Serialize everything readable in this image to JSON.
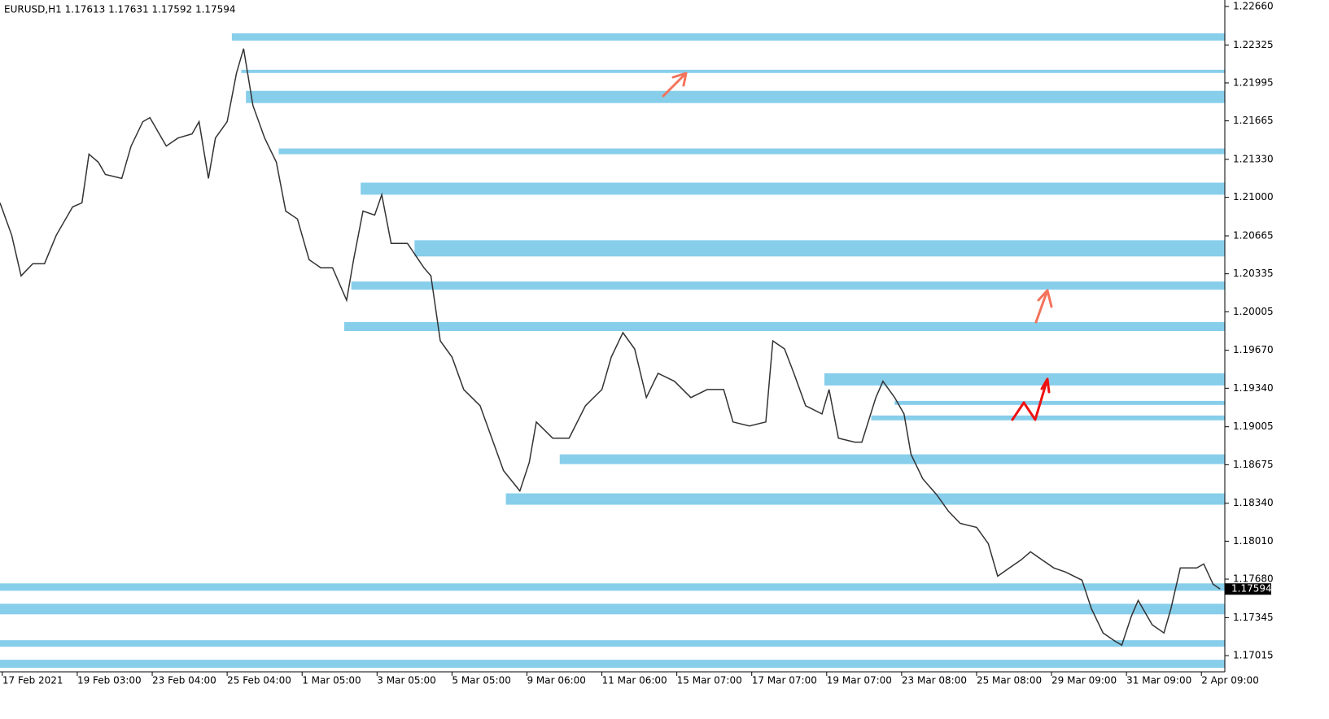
{
  "chart_data": {
    "type": "line",
    "title": "EURUSD,H1  1.17613 1.17631 1.17592 1.17594",
    "xlim": [
      0,
      523
    ],
    "xticks": [
      {
        "value": 1,
        "label": "17 Feb 2021"
      },
      {
        "value": 33,
        "label": "19 Feb 03:00"
      },
      {
        "value": 65,
        "label": "23 Feb 04:00"
      },
      {
        "value": 97,
        "label": "25 Feb 04:00"
      },
      {
        "value": 129,
        "label": "1 Mar 05:00"
      },
      {
        "value": 161,
        "label": "3 Mar 05:00"
      },
      {
        "value": 193,
        "label": "5 Mar 05:00"
      },
      {
        "value": 225,
        "label": "9 Mar 06:00"
      },
      {
        "value": 257,
        "label": "11 Mar 06:00"
      },
      {
        "value": 289,
        "label": "15 Mar 07:00"
      },
      {
        "value": 321,
        "label": "17 Mar 07:00"
      },
      {
        "value": 353,
        "label": "19 Mar 07:00"
      },
      {
        "value": 385,
        "label": "23 Mar 08:00"
      },
      {
        "value": 417,
        "label": "25 Mar 08:00"
      },
      {
        "value": 449,
        "label": "29 Mar 09:00"
      },
      {
        "value": 481,
        "label": "31 Mar 09:00"
      },
      {
        "value": 513,
        "label": "2 Apr 09:00"
      }
    ],
    "ylim": [
      1.16874,
      1.22716
    ],
    "yticks": [
      {
        "value": 1.2266,
        "label": "1.22660"
      },
      {
        "value": 1.22325,
        "label": "1.22325"
      },
      {
        "value": 1.21995,
        "label": "1.21995"
      },
      {
        "value": 1.21665,
        "label": "1.21665"
      },
      {
        "value": 1.2133,
        "label": "1.21330"
      },
      {
        "value": 1.21,
        "label": "1.21000"
      },
      {
        "value": 1.20665,
        "label": "1.20665"
      },
      {
        "value": 1.20335,
        "label": "1.20335"
      },
      {
        "value": 1.20005,
        "label": "1.20005"
      },
      {
        "value": 1.1967,
        "label": "1.19670"
      },
      {
        "value": 1.1934,
        "label": "1.19340"
      },
      {
        "value": 1.19005,
        "label": "1.19005"
      },
      {
        "value": 1.18675,
        "label": "1.18675"
      },
      {
        "value": 1.1834,
        "label": "1.18340"
      },
      {
        "value": 1.1801,
        "label": "1.18010"
      },
      {
        "value": 1.1768,
        "label": "1.17680"
      },
      {
        "value": 1.17345,
        "label": "1.17345"
      },
      {
        "value": 1.17015,
        "label": "1.17015"
      }
    ],
    "last_price": 1.17594,
    "series": [
      {
        "color": "#333333",
        "x": [
          0,
          5,
          9,
          14,
          19,
          24,
          31,
          35,
          38,
          42,
          45,
          52,
          56,
          61,
          64,
          68,
          71,
          76,
          82,
          85,
          89,
          92,
          97,
          101,
          104,
          108,
          113,
          118,
          122,
          127,
          132,
          137,
          142,
          148,
          151,
          155,
          160,
          163,
          167,
          174,
          181,
          184,
          188,
          193,
          198,
          205,
          210,
          215,
          222,
          226,
          229,
          236,
          243,
          250,
          257,
          261,
          266,
          271,
          276,
          281,
          288,
          295,
          302,
          309,
          313,
          320,
          327,
          330,
          335,
          339,
          344,
          351,
          354,
          358,
          365,
          368,
          374,
          377,
          382,
          386,
          389,
          394,
          400,
          405,
          410,
          417,
          422,
          426,
          431,
          436,
          440,
          445,
          450,
          455,
          462,
          466,
          471,
          476,
          479,
          483,
          486,
          492,
          497,
          500,
          504,
          511,
          514,
          518,
          521
        ],
        "values": [
          1.20952,
          1.2067,
          1.20317,
          1.20423,
          1.20423,
          1.2067,
          1.20917,
          1.20952,
          1.21375,
          1.21305,
          1.21199,
          1.21164,
          1.21446,
          1.21658,
          1.21693,
          1.21552,
          1.21446,
          1.21516,
          1.21552,
          1.21658,
          1.21164,
          1.21516,
          1.21658,
          1.22081,
          1.22293,
          1.21799,
          1.21516,
          1.21305,
          1.20881,
          1.20811,
          1.20458,
          1.20388,
          1.20388,
          1.20105,
          1.20458,
          1.20881,
          1.20846,
          1.21023,
          1.20599,
          1.20599,
          1.20388,
          1.20317,
          1.19752,
          1.19611,
          1.19329,
          1.19188,
          1.18906,
          1.18624,
          1.18447,
          1.18694,
          1.19047,
          1.18906,
          1.18906,
          1.19188,
          1.19329,
          1.19611,
          1.19823,
          1.19682,
          1.19259,
          1.1947,
          1.194,
          1.19259,
          1.19329,
          1.19329,
          1.19047,
          1.19012,
          1.19047,
          1.19752,
          1.19682,
          1.1947,
          1.19188,
          1.19117,
          1.19329,
          1.18906,
          1.18871,
          1.18871,
          1.19259,
          1.194,
          1.19259,
          1.19117,
          1.18765,
          1.18553,
          1.18412,
          1.18271,
          1.18165,
          1.1813,
          1.17988,
          1.17706,
          1.17777,
          1.17847,
          1.17918,
          1.17847,
          1.17777,
          1.17742,
          1.17671,
          1.17424,
          1.17212,
          1.17142,
          1.17106,
          1.17353,
          1.17495,
          1.17283,
          1.17212,
          1.17424,
          1.17777,
          1.17777,
          1.17812,
          1.17636,
          1.17594
        ]
      }
    ],
    "zone_color": "#87ceeb",
    "zones": [
      {
        "high": 1.22426,
        "low": 1.22363,
        "start": 99
      },
      {
        "high": 1.22109,
        "low": 1.22081,
        "start": 103
      },
      {
        "high": 1.21926,
        "low": 1.2182,
        "start": 105
      },
      {
        "high": 1.21425,
        "low": 1.21375,
        "start": 119
      },
      {
        "high": 1.21128,
        "low": 1.21023,
        "start": 154
      },
      {
        "high": 1.20627,
        "low": 1.20486,
        "start": 177
      },
      {
        "high": 1.20268,
        "low": 1.20197,
        "start": 150
      },
      {
        "high": 1.19915,
        "low": 1.19837,
        "start": 147
      },
      {
        "high": 1.1947,
        "low": 1.19364,
        "start": 352
      },
      {
        "high": 1.1923,
        "low": 1.19195,
        "start": 382
      },
      {
        "high": 1.19103,
        "low": 1.19061,
        "start": 372
      },
      {
        "high": 1.18765,
        "low": 1.1868,
        "start": 239
      },
      {
        "high": 1.18426,
        "low": 1.18327,
        "start": 216
      },
      {
        "high": 1.17643,
        "low": 1.17579,
        "start": 0
      },
      {
        "high": 1.17466,
        "low": 1.17374,
        "start": 0
      },
      {
        "high": 1.17149,
        "low": 1.17092,
        "start": 0
      },
      {
        "high": 1.16979,
        "low": 1.16909,
        "start": 0
      }
    ]
  }
}
